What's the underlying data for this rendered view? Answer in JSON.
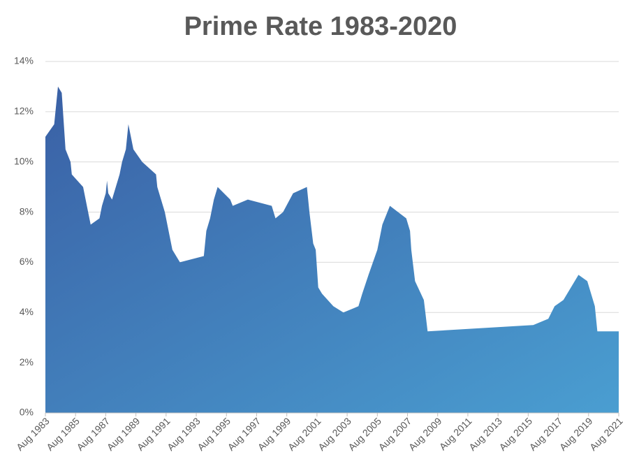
{
  "chart_data": {
    "type": "area",
    "title": "Prime Rate 1983-2020",
    "x": [
      "1983-08",
      "1984-03",
      "1984-05",
      "1984-06",
      "1984-09",
      "1984-11",
      "1984-12",
      "1985-04",
      "1985-05",
      "1986-02",
      "1986-04",
      "1986-06",
      "1986-08",
      "1987-03",
      "1987-05",
      "1987-08",
      "1987-09",
      "1987-10",
      "1988-01",
      "1988-04",
      "1988-07",
      "1988-09",
      "1988-12",
      "1989-02",
      "1989-04",
      "1989-06",
      "1990-01",
      "1990-12",
      "1991-01",
      "1991-04",
      "1991-07",
      "1992-01",
      "1992-07",
      "1994-02",
      "1994-04",
      "1994-07",
      "1994-10",
      "1995-01",
      "1995-11",
      "1996-01",
      "1997-01",
      "1998-08",
      "1998-11",
      "1999-05",
      "2000-01",
      "2000-12",
      "2001-02",
      "2001-05",
      "2001-07",
      "2001-09",
      "2001-12",
      "2002-09",
      "2003-05",
      "2004-05",
      "2004-08",
      "2005-01",
      "2005-08",
      "2005-12",
      "2006-02",
      "2006-06",
      "2007-07",
      "2007-10",
      "2007-11",
      "2008-02",
      "2008-09",
      "2008-12",
      "2015-12",
      "2016-12",
      "2017-05",
      "2017-12",
      "2018-12",
      "2019-07",
      "2020-01",
      "2020-03",
      "2021-08"
    ],
    "values": [
      11,
      11.5,
      12.5,
      13,
      12.75,
      11.25,
      10.5,
      10,
      9.5,
      9,
      8.5,
      8,
      7.5,
      7.75,
      8.25,
      8.75,
      9.25,
      8.75,
      8.5,
      9,
      9.5,
      10,
      10.5,
      11.5,
      11,
      10.5,
      10,
      9.5,
      9,
      8.5,
      8,
      6.5,
      6,
      6.25,
      7.25,
      7.75,
      8.5,
      9,
      8.5,
      8.25,
      8.5,
      8.25,
      7.75,
      8,
      8.75,
      9,
      8,
      6.75,
      6.5,
      5,
      4.75,
      4.25,
      4,
      4.25,
      4.75,
      5.5,
      6.5,
      7.5,
      7.75,
      8.25,
      7.75,
      7.25,
      6.5,
      5.25,
      4.5,
      3.25,
      3.5,
      3.75,
      4.25,
      4.5,
      5.5,
      5.25,
      4.25,
      3.25,
      3.25
    ],
    "color": [
      "#3a60a5",
      "#4a9ed1"
    ],
    "xlim": [
      "1983-08",
      "2021-08"
    ],
    "xticks": [
      {
        "value": "1983-08",
        "label": "Aug 1983"
      },
      {
        "value": "1985-08",
        "label": "Aug 1985"
      },
      {
        "value": "1987-08",
        "label": "Aug 1987"
      },
      {
        "value": "1989-08",
        "label": "Aug 1989"
      },
      {
        "value": "1991-08",
        "label": "Aug 1991"
      },
      {
        "value": "1993-08",
        "label": "Aug 1993"
      },
      {
        "value": "1995-08",
        "label": "Aug 1995"
      },
      {
        "value": "1997-08",
        "label": "Aug 1997"
      },
      {
        "value": "1999-08",
        "label": "Aug 1999"
      },
      {
        "value": "2001-08",
        "label": "Aug 2001"
      },
      {
        "value": "2003-08",
        "label": "Aug 2003"
      },
      {
        "value": "2005-08",
        "label": "Aug 2005"
      },
      {
        "value": "2007-08",
        "label": "Aug 2007"
      },
      {
        "value": "2009-08",
        "label": "Aug 2009"
      },
      {
        "value": "2011-08",
        "label": "Aug 2011"
      },
      {
        "value": "2013-08",
        "label": "Aug 2013"
      },
      {
        "value": "2015-08",
        "label": "Aug 2015"
      },
      {
        "value": "2017-08",
        "label": "Aug 2017"
      },
      {
        "value": "2019-08",
        "label": "Aug 2019"
      },
      {
        "value": "2021-08",
        "label": "Aug 2021"
      }
    ],
    "ylim": [
      0,
      14
    ],
    "yticks": [
      {
        "value": 0,
        "label": "0%"
      },
      {
        "value": 2,
        "label": "2%"
      },
      {
        "value": 4,
        "label": "4%"
      },
      {
        "value": 6,
        "label": "6%"
      },
      {
        "value": 8,
        "label": "8%"
      },
      {
        "value": 10,
        "label": "10%"
      },
      {
        "value": 12,
        "label": "12%"
      },
      {
        "value": 14,
        "label": "14%"
      }
    ],
    "grid": true
  }
}
